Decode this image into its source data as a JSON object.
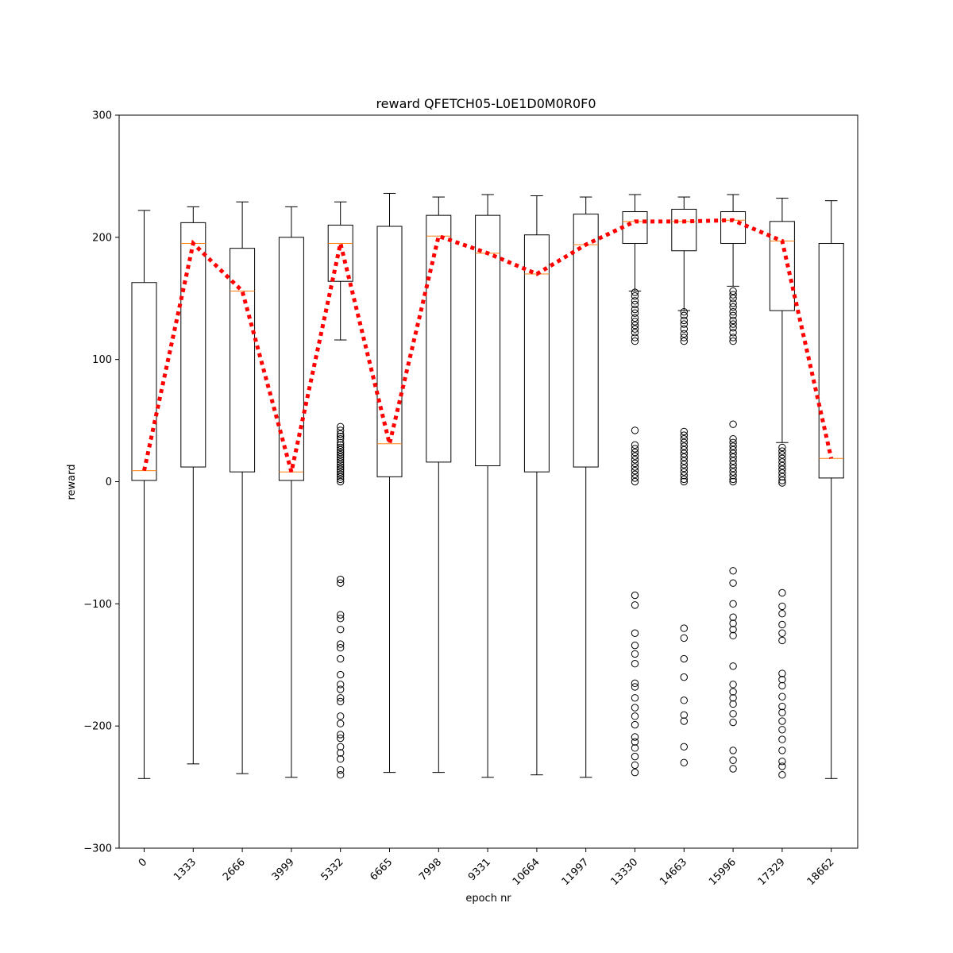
{
  "chart_data": {
    "type": "box",
    "title": "reward QFETCH05-L0E1D0M0R0F0",
    "xlabel": "epoch nr",
    "ylabel": "reward",
    "ylim": [
      -300,
      300
    ],
    "yticks": [
      -300,
      -200,
      -100,
      0,
      100,
      200,
      300
    ],
    "grid": false,
    "colors": {
      "box": "#000000",
      "median": "#ff7f0e",
      "mean_line": "#ff0000"
    },
    "categories": [
      "0",
      "1333",
      "2666",
      "3999",
      "5332",
      "6665",
      "7998",
      "9331",
      "10664",
      "11997",
      "13330",
      "14663",
      "15996",
      "17329",
      "18662"
    ],
    "boxes": [
      {
        "q1": 1,
        "median": 9,
        "q3": 163,
        "whisker_low": -243,
        "whisker_high": 222,
        "outliers": []
      },
      {
        "q1": 12,
        "median": 195,
        "q3": 212,
        "whisker_low": -231,
        "whisker_high": 225,
        "outliers": []
      },
      {
        "q1": 8,
        "median": 156,
        "q3": 191,
        "whisker_low": -239,
        "whisker_high": 229,
        "outliers": []
      },
      {
        "q1": 1,
        "median": 8,
        "q3": 200,
        "whisker_low": -242,
        "whisker_high": 225,
        "outliers": []
      },
      {
        "q1": 164,
        "median": 195,
        "q3": 210,
        "whisker_low": 116,
        "whisker_high": 229,
        "outliers": [
          45,
          42,
          39,
          37,
          35,
          32,
          30,
          28,
          26,
          24,
          22,
          20,
          18,
          16,
          14,
          12,
          10,
          8,
          6,
          4,
          2,
          0,
          -80,
          -83,
          -109,
          -112,
          -121,
          -133,
          -136,
          -145,
          -158,
          -166,
          -170,
          -177,
          -180,
          -192,
          -198,
          -207,
          -210,
          -217,
          -222,
          -227,
          -236,
          -240
        ]
      },
      {
        "q1": 4,
        "median": 31,
        "q3": 209,
        "whisker_low": -238,
        "whisker_high": 236,
        "outliers": []
      },
      {
        "q1": 16,
        "median": 201,
        "q3": 218,
        "whisker_low": -238,
        "whisker_high": 233,
        "outliers": []
      },
      {
        "q1": 13,
        "median": 187,
        "q3": 218,
        "whisker_low": -242,
        "whisker_high": 235,
        "outliers": []
      },
      {
        "q1": 8,
        "median": 170,
        "q3": 202,
        "whisker_low": -240,
        "whisker_high": 234,
        "outliers": []
      },
      {
        "q1": 12,
        "median": 194,
        "q3": 219,
        "whisker_low": -242,
        "whisker_high": 233,
        "outliers": []
      },
      {
        "q1": 195,
        "median": 213,
        "q3": 221,
        "whisker_low": 156,
        "whisker_high": 235,
        "outliers": [
          155,
          152,
          148,
          145,
          141,
          138,
          134,
          131,
          128,
          125,
          122,
          118,
          115,
          42,
          30,
          27,
          24,
          21,
          18,
          15,
          12,
          9,
          6,
          3,
          0,
          -93,
          -101,
          -124,
          -134,
          -141,
          -149,
          -165,
          -168,
          -177,
          -185,
          -192,
          -199,
          -209,
          -213,
          -218,
          -225,
          -232,
          -238
        ]
      },
      {
        "q1": 189,
        "median": 213,
        "q3": 223,
        "whisker_low": 140,
        "whisker_high": 233,
        "outliers": [
          139,
          136,
          132,
          129,
          125,
          121,
          118,
          115,
          41,
          38,
          35,
          32,
          29,
          26,
          23,
          20,
          17,
          14,
          11,
          8,
          5,
          2,
          0,
          -120,
          -128,
          -145,
          -160,
          -179,
          -191,
          -196,
          -217,
          -230
        ]
      },
      {
        "q1": 195,
        "median": 214,
        "q3": 221,
        "whisker_low": 160,
        "whisker_high": 235,
        "outliers": [
          156,
          153,
          150,
          146,
          143,
          139,
          136,
          132,
          129,
          126,
          122,
          118,
          115,
          47,
          35,
          32,
          29,
          26,
          23,
          20,
          17,
          14,
          11,
          8,
          5,
          2,
          0,
          -73,
          -83,
          -100,
          -111,
          -116,
          -121,
          -126,
          -151,
          -166,
          -172,
          -177,
          -182,
          -190,
          -197,
          -220,
          -228,
          -235
        ]
      },
      {
        "q1": 140,
        "median": 197,
        "q3": 213,
        "whisker_low": 32,
        "whisker_high": 232,
        "outliers": [
          28,
          25,
          22,
          19,
          16,
          13,
          10,
          7,
          4,
          1,
          -1,
          -91,
          -102,
          -108,
          -117,
          -124,
          -130,
          -157,
          -162,
          -167,
          -176,
          -184,
          -189,
          -196,
          -203,
          -211,
          -220,
          -229,
          -233,
          -240
        ]
      },
      {
        "q1": 3,
        "median": 19,
        "q3": 195,
        "whisker_low": -243,
        "whisker_high": 230,
        "outliers": []
      }
    ],
    "mean_line": {
      "style": "dotted",
      "values": [
        9,
        195,
        156,
        8,
        195,
        31,
        201,
        187,
        170,
        194,
        213,
        213,
        214,
        197,
        19
      ]
    }
  }
}
